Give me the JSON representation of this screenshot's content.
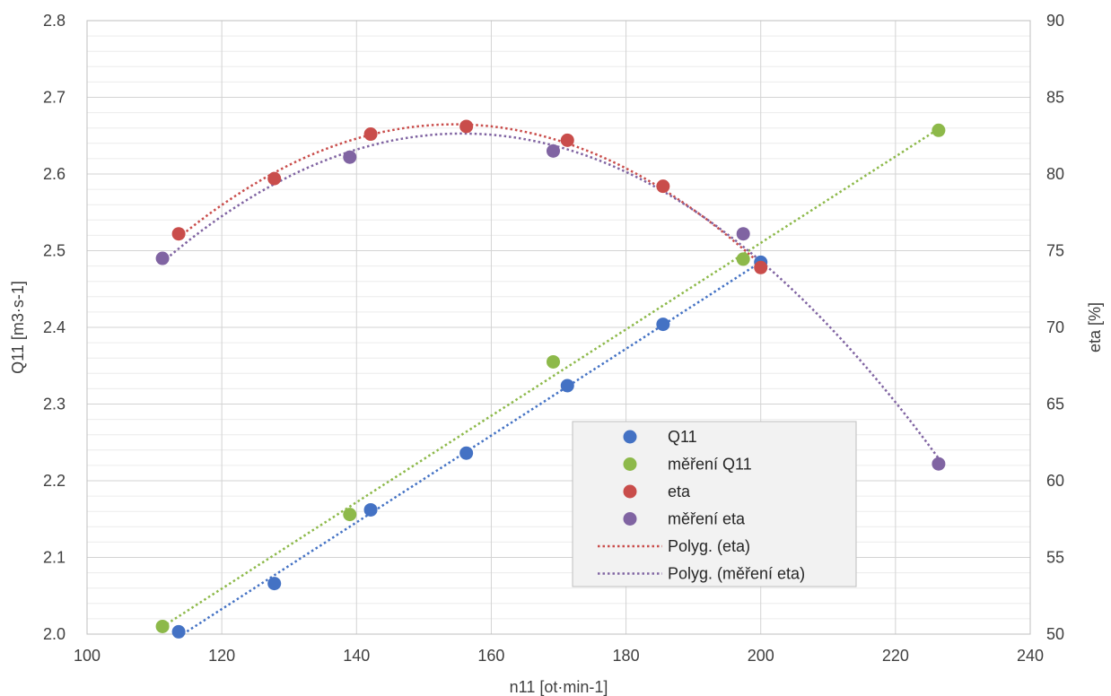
{
  "chart_data": {
    "type": "scatter",
    "xlabel": "n11 [ot·min-1]",
    "ylabel": "Q11 [m3·s-1]",
    "y2label": "eta [%]",
    "xlim": [
      100,
      240
    ],
    "ylim": [
      2.0,
      2.8
    ],
    "y2lim": [
      50,
      90
    ],
    "xticks": [
      "100",
      "120",
      "140",
      "160",
      "180",
      "200",
      "220",
      "240"
    ],
    "yticks": [
      "2.0",
      "2.1",
      "2.2",
      "2.3",
      "2.4",
      "2.5",
      "2.6",
      "2.7",
      "2.8"
    ],
    "y2ticks": [
      "50",
      "55",
      "60",
      "65",
      "70",
      "75",
      "80",
      "85",
      "90"
    ],
    "grid": true,
    "legend_position": "bottom-right",
    "series": [
      {
        "name": "Q11",
        "axis": "left",
        "color": "#4472C4",
        "x": [
          113.6,
          127.8,
          142.1,
          156.3,
          171.3,
          185.5,
          200.0
        ],
        "y": [
          2.003,
          2.066,
          2.162,
          2.236,
          2.324,
          2.404,
          2.485
        ]
      },
      {
        "name": "měření Q11",
        "axis": "left",
        "color": "#8DB94A",
        "x": [
          111.2,
          139.0,
          169.2,
          197.4,
          226.4
        ],
        "y": [
          2.01,
          2.156,
          2.355,
          2.489,
          2.657
        ]
      },
      {
        "name": "eta",
        "axis": "right",
        "color": "#C94D4B",
        "x": [
          113.6,
          127.8,
          142.1,
          156.3,
          171.3,
          185.5,
          200.0
        ],
        "y": [
          76.1,
          79.7,
          82.6,
          83.1,
          82.2,
          79.2,
          73.9
        ]
      },
      {
        "name": "měření eta",
        "axis": "right",
        "color": "#8064A2",
        "x": [
          111.2,
          139.0,
          169.2,
          197.4,
          226.4
        ],
        "y": [
          74.5,
          81.1,
          81.5,
          76.1,
          61.1
        ]
      }
    ],
    "trendlines": [
      {
        "name": "",
        "of": "Q11",
        "kind": "linear",
        "axis": "left",
        "color": "#4472C4",
        "x_range": [
          113.6,
          200.0
        ],
        "show_in_legend": false
      },
      {
        "name": "",
        "of": "měření Q11",
        "kind": "linear",
        "axis": "left",
        "color": "#8DB94A",
        "x_range": [
          111.2,
          226.4
        ],
        "show_in_legend": false
      },
      {
        "name": "Polyg. (eta)",
        "of": "eta",
        "kind": "polynomial",
        "axis": "right",
        "color": "#C94D4B",
        "x_range": [
          113.6,
          200.0
        ],
        "show_in_legend": true
      },
      {
        "name": "Polyg. (měření eta)",
        "of": "měření eta",
        "kind": "polynomial",
        "axis": "right",
        "color": "#8064A2",
        "x_range": [
          111.2,
          226.4
        ],
        "show_in_legend": true
      }
    ]
  }
}
